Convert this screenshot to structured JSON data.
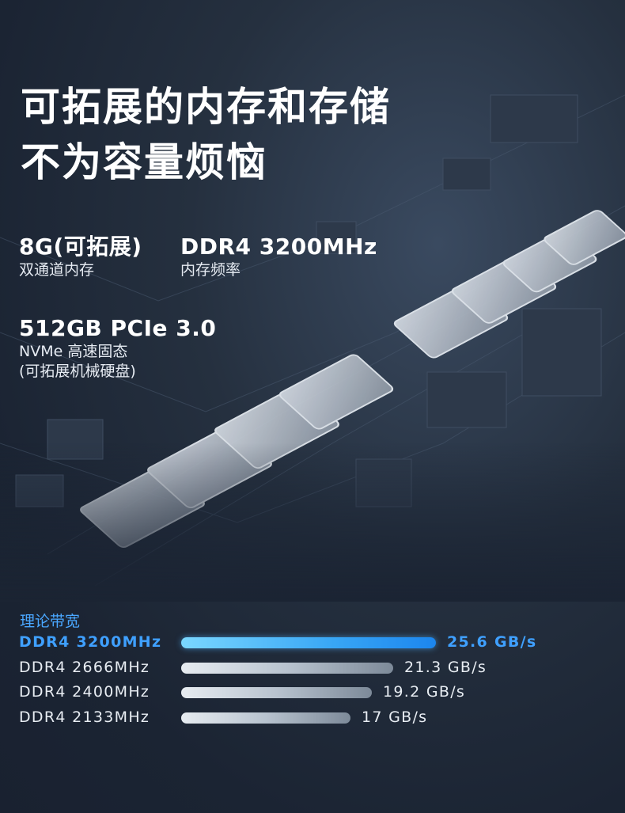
{
  "headline": {
    "line1": "可拓展的内存和存储",
    "line2": "不为容量烦恼"
  },
  "specs": {
    "memory": {
      "title": "8G(可拓展)",
      "subtitle": "双通道内存"
    },
    "memory_speed": {
      "title": "DDR4 3200MHz",
      "subtitle": "内存频率"
    },
    "storage": {
      "title": "512GB PCIe 3.0",
      "subtitle_1": "NVMe 高速固态",
      "subtitle_2": "(可拓展机械硬盘)"
    }
  },
  "bandwidth": {
    "title": "理论带宽",
    "max_gbps": 25.6,
    "rows": [
      {
        "label": "DDR4 3200MHz",
        "value_text": "25.6 GB/s",
        "gbps": 25.6,
        "highlight": true
      },
      {
        "label": "DDR4 2666MHz",
        "value_text": "21.3 GB/s",
        "gbps": 21.3,
        "highlight": false
      },
      {
        "label": "DDR4 2400MHz",
        "value_text": "19.2 GB/s",
        "gbps": 19.2,
        "highlight": false
      },
      {
        "label": "DDR4 2133MHz",
        "value_text": "17 GB/s",
        "gbps": 17,
        "highlight": false
      }
    ]
  },
  "colors": {
    "accent": "#3fa0ff",
    "background": "#1b2433"
  }
}
